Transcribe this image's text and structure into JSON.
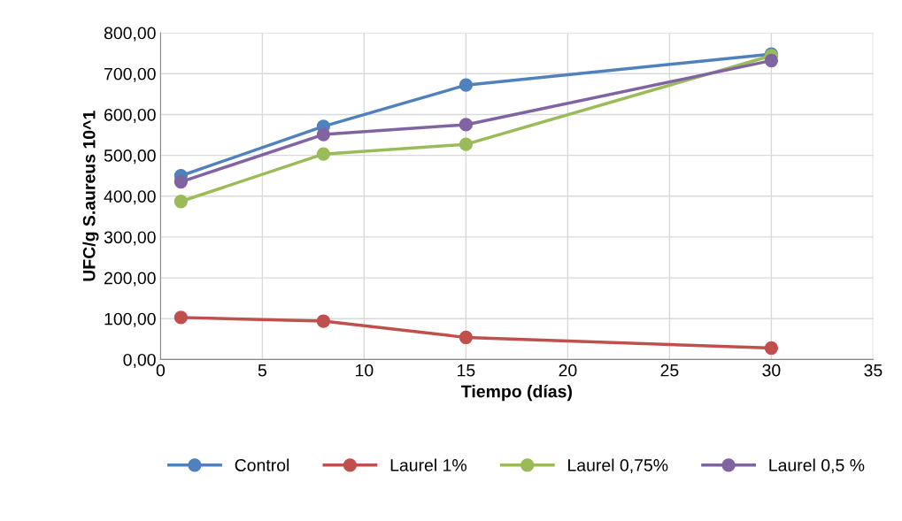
{
  "chart_data": {
    "type": "line",
    "xlabel": "Tiempo (días)",
    "ylabel": "UFC/g S.aureus 10^1",
    "x": [
      1,
      8,
      15,
      30
    ],
    "series": [
      {
        "name": "Control",
        "color": "#4f81bd",
        "values": [
          450,
          571,
          672,
          748
        ]
      },
      {
        "name": "Laurel 1%",
        "color": "#c0504d",
        "values": [
          103,
          94,
          54,
          28
        ]
      },
      {
        "name": "Laurel 0,75%",
        "color": "#9bbb59",
        "values": [
          387,
          503,
          527,
          744
        ]
      },
      {
        "name": "Laurel 0,5 %",
        "color": "#8064a2",
        "values": [
          435,
          551,
          575,
          732
        ]
      }
    ],
    "xlim": [
      0,
      35
    ],
    "xticks": [
      0,
      5,
      10,
      15,
      20,
      25,
      30,
      35
    ],
    "ylim": [
      0,
      800
    ],
    "yticks": [
      {
        "value": 0,
        "label": "0,00"
      },
      {
        "value": 100,
        "label": "100,00"
      },
      {
        "value": 200,
        "label": "200,00"
      },
      {
        "value": 300,
        "label": "300,00"
      },
      {
        "value": 400,
        "label": "400,00"
      },
      {
        "value": 500,
        "label": "500,00"
      },
      {
        "value": 600,
        "label": "600,00"
      },
      {
        "value": 700,
        "label": "700,00"
      },
      {
        "value": 800,
        "label": "800,00"
      }
    ],
    "grid": true,
    "legend": "bottom",
    "marker": "circle",
    "line_style": "solid"
  }
}
